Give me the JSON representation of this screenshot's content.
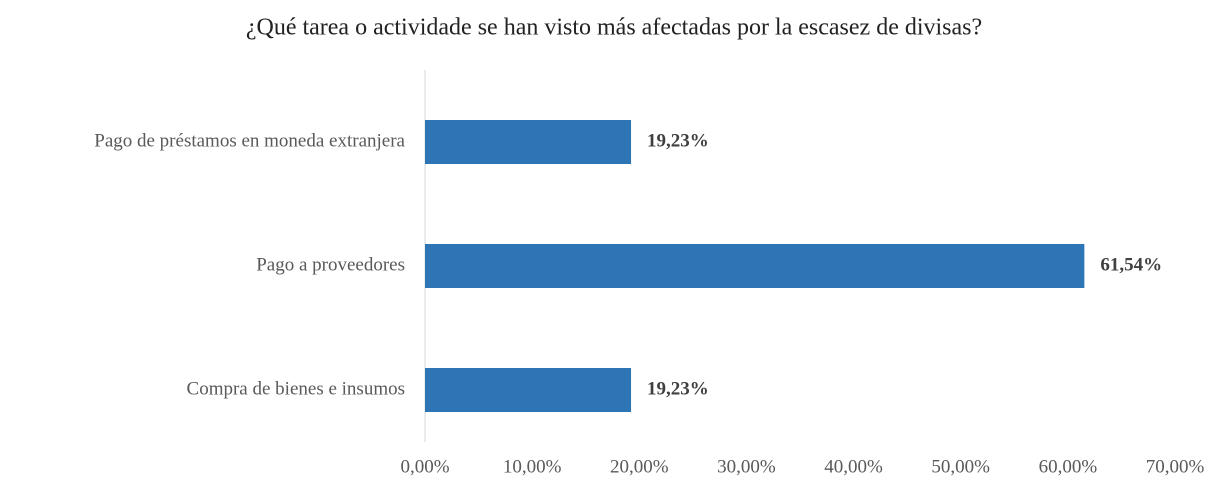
{
  "chart_data": {
    "type": "barh",
    "title": "¿Qué tarea o actividade se han visto más afectadas por la escasez de divisas?",
    "categories": [
      "Pago de préstamos en moneda extranjera",
      "Pago a proveedores",
      "Compra de bienes e insumos"
    ],
    "values": [
      19.23,
      61.54,
      19.23
    ],
    "value_labels": [
      "19,23%",
      "61,54%",
      "19,23%"
    ],
    "color": "#2e75b6",
    "xlim": [
      0,
      70
    ],
    "xticks": [
      {
        "value": 0,
        "label": "0,00%"
      },
      {
        "value": 10,
        "label": "10,00%"
      },
      {
        "value": 20,
        "label": "20,00%"
      },
      {
        "value": 30,
        "label": "30,00%"
      },
      {
        "value": 40,
        "label": "40,00%"
      },
      {
        "value": 50,
        "label": "50,00%"
      },
      {
        "value": 60,
        "label": "60,00%"
      },
      {
        "value": 70,
        "label": "70,00%"
      }
    ],
    "grid": false
  }
}
